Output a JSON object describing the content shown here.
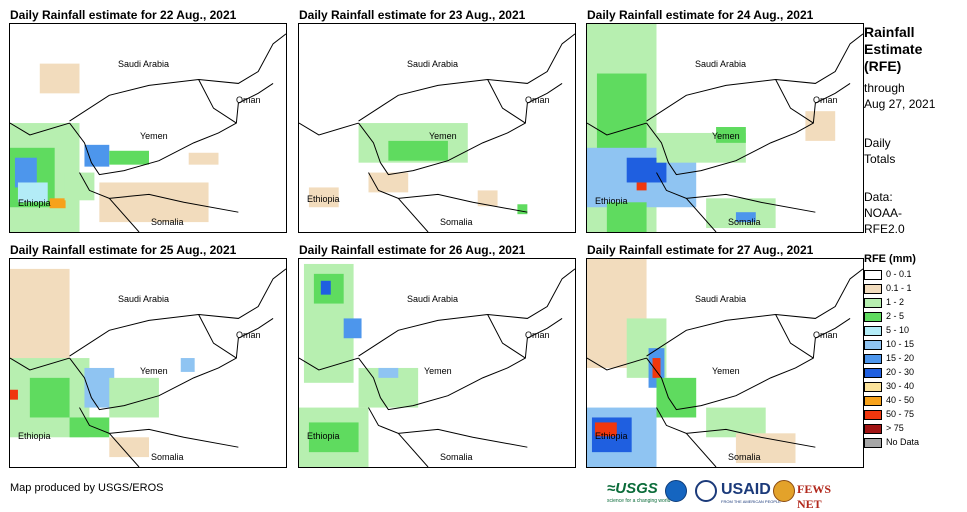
{
  "panels": [
    {
      "title": "Daily Rainfall estimate for 22 Aug., 2021"
    },
    {
      "title": "Daily Rainfall estimate for 23 Aug., 2021"
    },
    {
      "title": "Daily Rainfall estimate for 24 Aug., 2021"
    },
    {
      "title": "Daily Rainfall estimate for 25 Aug., 2021"
    },
    {
      "title": "Daily Rainfall estimate for 26 Aug., 2021"
    },
    {
      "title": "Daily Rainfall estimate for 27 Aug., 2021"
    }
  ],
  "map_labels": {
    "saudi": "Saudi Arabia",
    "oman": "Oman",
    "yemen": "Yemen",
    "ethiopia": "Ethiopia",
    "somalia": "Somalia"
  },
  "sidebar": {
    "title_lines": [
      "Rainfall",
      "Estimate",
      "(RFE)"
    ],
    "through": "through",
    "date": "Aug 27, 2021",
    "daily": "Daily",
    "totals": "Totals",
    "data_label": "Data:",
    "data_src1": "NOAA-",
    "data_src2": "RFE2.0"
  },
  "legend": {
    "title": "RFE (mm)",
    "items": [
      {
        "label": "0 - 0.1",
        "color": "#ffffff"
      },
      {
        "label": "0.1 - 1",
        "color": "#f2dcbd"
      },
      {
        "label": "1 - 2",
        "color": "#b7efb0"
      },
      {
        "label": "2 - 5",
        "color": "#5fdb5f"
      },
      {
        "label": "5 - 10",
        "color": "#b3ecf7"
      },
      {
        "label": "10 - 15",
        "color": "#8fc4f2"
      },
      {
        "label": "15 - 20",
        "color": "#4d96ec"
      },
      {
        "label": "20 - 30",
        "color": "#1f5fe0"
      },
      {
        "label": "30 - 40",
        "color": "#fbe29a"
      },
      {
        "label": "40 - 50",
        "color": "#f7a21b"
      },
      {
        "label": "50 - 75",
        "color": "#f0370e"
      },
      {
        "label": "> 75",
        "color": "#a11414"
      },
      {
        "label": "No Data",
        "color": "#a6a6a6"
      }
    ]
  },
  "credit": "Map produced by USGS/EROS",
  "logos": {
    "usgs": "≈USGS",
    "usgs_sub": "science for a changing world",
    "usaid": "USAID",
    "usaid_sub": "FROM THE AMERICAN PEOPLE",
    "fews": "FEWS NET"
  }
}
